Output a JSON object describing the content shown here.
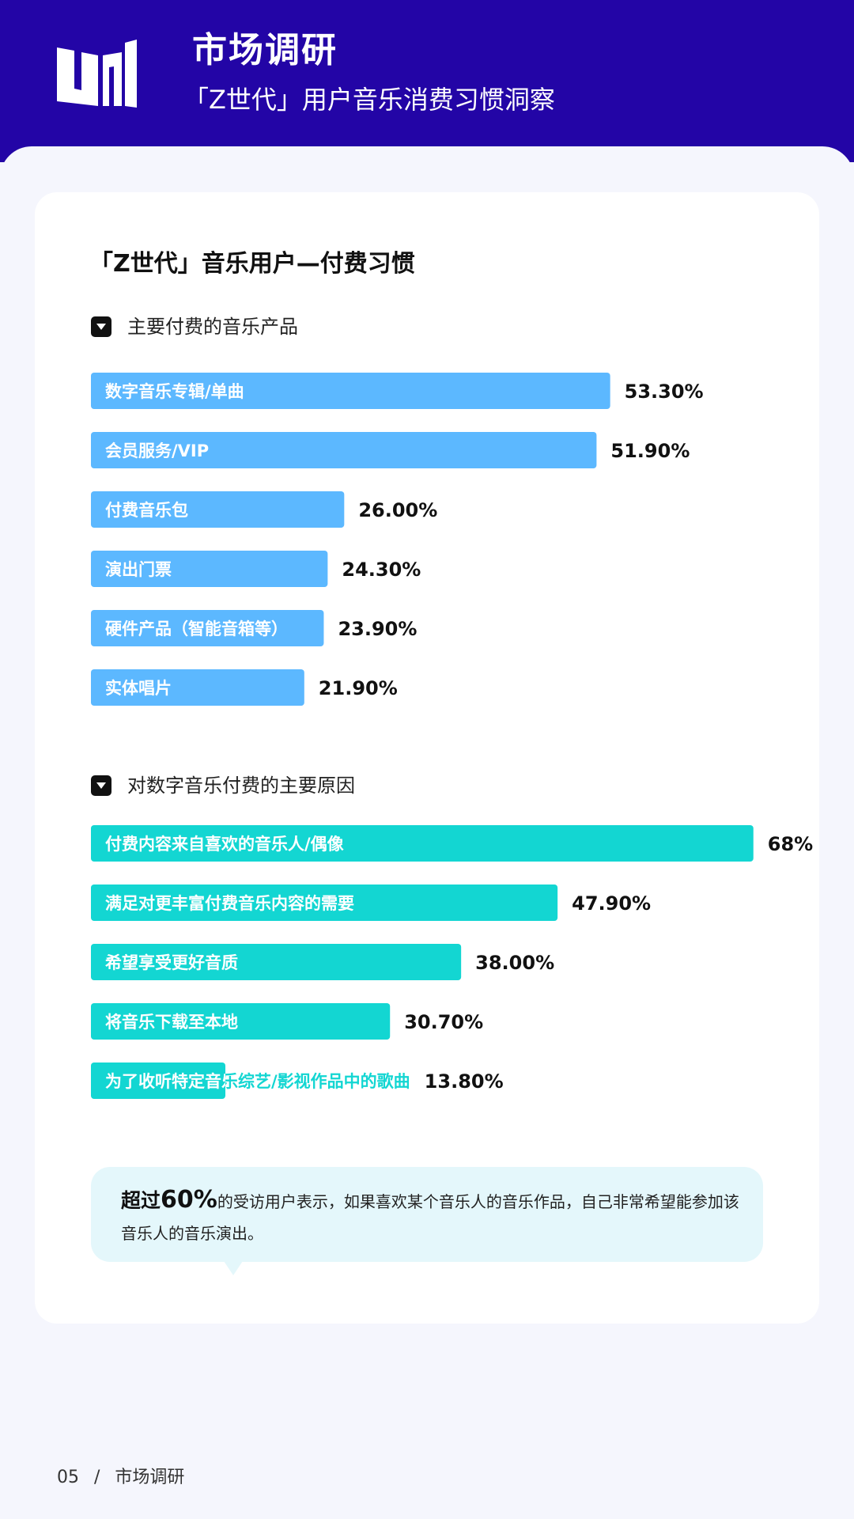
{
  "header": {
    "title": "市场调研",
    "subtitle": "「Z世代」用户音乐消费习惯洞察"
  },
  "card": {
    "title": "「Z世代」音乐用户—付费习惯"
  },
  "colors": {
    "header_bg": "#2305a6",
    "bar_blue": "#5cb8ff",
    "bar_cyan": "#13d6d2",
    "bubble_bg": "#e4f7fb"
  },
  "chart_data": [
    {
      "type": "bar",
      "orientation": "horizontal",
      "title": "主要付费的音乐产品",
      "categories": [
        "数字音乐专辑/单曲",
        "会员服务/VIP",
        "付费音乐包",
        "演出门票",
        "硬件产品（智能音箱等）",
        "实体唱片"
      ],
      "values": [
        53.3,
        51.9,
        26.0,
        24.3,
        23.9,
        21.9
      ],
      "value_labels": [
        "53.30%",
        "51.90%",
        "26.00%",
        "24.30%",
        "23.90%",
        "21.90%"
      ],
      "color": "#5cb8ff"
    },
    {
      "type": "bar",
      "orientation": "horizontal",
      "title": "对数字音乐付费的主要原因",
      "categories": [
        "付费内容来自喜欢的音乐人/偶像",
        "满足对更丰富付费音乐内容的需要",
        "希望享受更好音质",
        "将音乐下载至本地",
        "为了收听特定音乐综艺/影视作品中的歌曲"
      ],
      "values": [
        68,
        47.9,
        38.0,
        30.7,
        13.8
      ],
      "value_labels": [
        "68%",
        "47.90%",
        "38.00%",
        "30.70%",
        "13.80%"
      ],
      "color": "#13d6d2"
    }
  ],
  "callout": {
    "highlight_prefix": "超过",
    "highlight_number": "60%",
    "text": "的受访用户表示，如果喜欢某个音乐人的音乐作品，自己非常希望能参加该音乐人的音乐演出。"
  },
  "footer": {
    "page_number": "05",
    "separator": "/",
    "section": "市场调研"
  }
}
